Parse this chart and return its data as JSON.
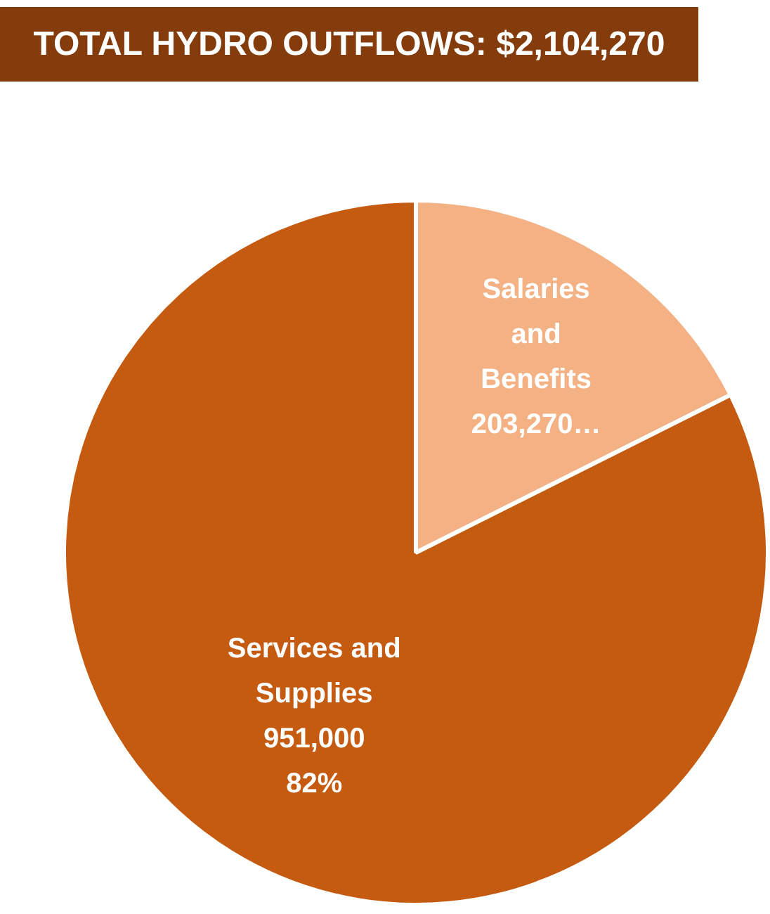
{
  "chart_data": {
    "type": "pie",
    "title": "TOTAL HYDRO OUTFLOWS: $2,104,270",
    "categories": [
      "Salaries and Benefits",
      "Services and Supplies"
    ],
    "values": [
      203270,
      951000
    ],
    "colors": [
      "#f4b183",
      "#c55a11"
    ],
    "value_labels": [
      "203,270…",
      "951,000\n82%"
    ],
    "legend": false
  }
}
